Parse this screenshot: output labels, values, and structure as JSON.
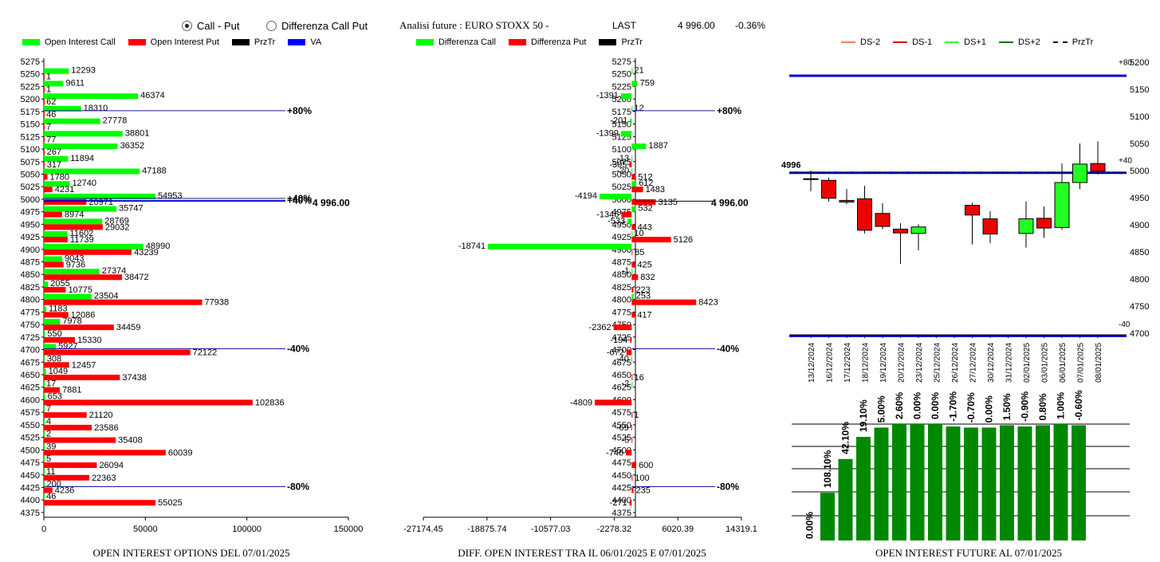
{
  "header": {
    "radio_call_put": "Call - Put",
    "radio_diff": "Differenza Call Put",
    "analysis_label": "Analisi future : EURO STOXX 50 -",
    "last_label": "LAST",
    "last_value": "4 996.00",
    "last_change": "-0.36%"
  },
  "legend1": {
    "items": [
      {
        "label": "Open Interest Call",
        "color": "#00ff00"
      },
      {
        "label": "Open Interest Put",
        "color": "#ff0000"
      },
      {
        "label": "PrzTr",
        "color": "#000000"
      },
      {
        "label": "VA",
        "color": "#0000ff"
      }
    ]
  },
  "legend2": {
    "items": [
      {
        "label": "Differenza Call",
        "color": "#00ff00"
      },
      {
        "label": "Differenza Put",
        "color": "#ff0000"
      },
      {
        "label": "PrzTr",
        "color": "#000000"
      }
    ]
  },
  "legend3": {
    "items": [
      {
        "label": "DS-2",
        "color": "#f08060",
        "style": "solid"
      },
      {
        "label": "DS-1",
        "color": "#dd0000",
        "style": "solid"
      },
      {
        "label": "DS+1",
        "color": "#33ff33",
        "style": "solid"
      },
      {
        "label": "DS+2",
        "color": "#007700",
        "style": "solid"
      },
      {
        "label": "PrzTr",
        "color": "#000000",
        "style": "dashed"
      }
    ]
  },
  "captions": {
    "c1": "OPEN INTEREST OPTIONS DEL 07/01/2025",
    "c2": "DIFF. OPEN INTEREST TRA IL 06/01/2025 E 07/01/2025",
    "c3": "OPEN INTEREST FUTURE AL 07/01/2025"
  },
  "chart_data": [
    {
      "type": "bar",
      "orientation": "horizontal",
      "strikes": [
        5275,
        5250,
        5225,
        5200,
        5175,
        5150,
        5125,
        5100,
        5075,
        5050,
        5025,
        5000,
        4975,
        4950,
        4925,
        4900,
        4875,
        4850,
        4825,
        4800,
        4775,
        4750,
        4725,
        4700,
        4675,
        4650,
        4625,
        4600,
        4575,
        4550,
        4525,
        4500,
        4475,
        4450,
        4425,
        4400,
        4375
      ],
      "series": [
        {
          "name": "Open Interest Call",
          "values": [
            null,
            12293,
            9611,
            46374,
            18310,
            27778,
            38801,
            36352,
            11894,
            47188,
            12740,
            54953,
            35747,
            28769,
            11602,
            48990,
            9043,
            27374,
            2055,
            23504,
            1183,
            7978,
            550,
            5927,
            308,
            1049,
            17,
            653,
            7,
            4,
            2,
            39,
            5,
            11,
            200,
            46,
            null
          ]
        },
        {
          "name": "Open Interest Put",
          "values": [
            null,
            1,
            1,
            62,
            46,
            7,
            77,
            267,
            317,
            1780,
            4231,
            20971,
            8974,
            29032,
            11739,
            43239,
            9736,
            38472,
            10775,
            77938,
            12086,
            34459,
            15330,
            72122,
            12457,
            37438,
            7881,
            102836,
            21120,
            23586,
            35408,
            60039,
            26094,
            22363,
            4236,
            55025,
            null
          ]
        }
      ],
      "x_ticks": [
        "0",
        "50000",
        "100000",
        "150000"
      ],
      "xlim": [
        0,
        150000
      ],
      "annotations": [
        {
          "strike": 5175,
          "label": "+80%"
        },
        {
          "strike": 5000,
          "label": "+40%"
        },
        {
          "strike": 4700,
          "label": "-40%"
        },
        {
          "strike": 4425,
          "label": "-80%"
        }
      ],
      "price_label": "4 996.00",
      "price": 4996
    },
    {
      "type": "bar",
      "orientation": "horizontal",
      "strikes": [
        5275,
        5250,
        5225,
        5200,
        5175,
        5150,
        5125,
        5100,
        5075,
        5050,
        5025,
        5000,
        4975,
        4950,
        4925,
        4900,
        4875,
        4850,
        4825,
        4800,
        4775,
        4750,
        4725,
        4700,
        4675,
        4650,
        4625,
        4600,
        4575,
        4550,
        4525,
        4500,
        4475,
        4450,
        4425,
        4400,
        4375
      ],
      "series": [
        {
          "name": "Differenza Call",
          "values": [
            null,
            21,
            759,
            -1391,
            12,
            -201,
            -1399,
            1887,
            -13,
            -20,
            612,
            -4194,
            532,
            -533,
            10,
            -18741,
            null,
            -1,
            null,
            253,
            null,
            null,
            null,
            null,
            -40,
            null,
            -2,
            null,
            null,
            null,
            null,
            null,
            null,
            null,
            null,
            null,
            null
          ]
        },
        {
          "name": "Differenza Put",
          "values": [
            null,
            null,
            null,
            null,
            null,
            null,
            null,
            null,
            -305,
            512,
            1483,
            3135,
            -1346,
            443,
            5126,
            85,
            425,
            832,
            223,
            8423,
            417,
            -2362,
            -194,
            -672,
            null,
            16,
            null,
            -4809,
            1,
            -69,
            -5,
            -746,
            600,
            100,
            235,
            -271,
            null
          ]
        }
      ],
      "x_ticks": [
        "-27174.45",
        "-18875.74",
        "-10577.03",
        "-2278.32",
        "6020.39",
        "14319.1"
      ],
      "xlim": [
        -27174.45,
        14319.1
      ],
      "annotations": [
        {
          "strike": 5175,
          "label": "+80%"
        },
        {
          "strike": 5000,
          "label": "-"
        },
        {
          "strike": 4700,
          "label": "-40%"
        },
        {
          "strike": 4425,
          "label": "-80%"
        }
      ],
      "price_label": "4 996.00",
      "price": 4996
    },
    {
      "type": "candlestick",
      "dates": [
        "13/12/2024",
        "16/12/2024",
        "17/12/2024",
        "18/12/2024",
        "19/12/2024",
        "20/12/2024",
        "23/12/2024",
        "25/12/2024",
        "26/12/2024",
        "27/12/2024",
        "30/12/2024",
        "31/12/2024",
        "02/01/2025",
        "03/01/2025",
        "06/01/2025",
        "07/01/2025",
        "08/01/2025"
      ],
      "candles": [
        {
          "o": 4985,
          "h": 5000,
          "l": 4962,
          "c": 4985
        },
        {
          "o": 4982,
          "h": 4987,
          "l": 4943,
          "c": 4949
        },
        {
          "o": 4945,
          "h": 4966,
          "l": 4938,
          "c": 4942
        },
        {
          "o": 4948,
          "h": 4972,
          "l": 4884,
          "c": 4890
        },
        {
          "o": 4921,
          "h": 4940,
          "l": 4892,
          "c": 4897
        },
        {
          "o": 4892,
          "h": 4903,
          "l": 4828,
          "c": 4885
        },
        {
          "o": 4884,
          "h": 4901,
          "l": 4853,
          "c": 4896
        },
        null,
        null,
        {
          "o": 4936,
          "h": 4941,
          "l": 4864,
          "c": 4918
        },
        {
          "o": 4911,
          "h": 4925,
          "l": 4866,
          "c": 4883
        },
        null,
        {
          "o": 4884,
          "h": 4943,
          "l": 4858,
          "c": 4911
        },
        {
          "o": 4912,
          "h": 4934,
          "l": 4876,
          "c": 4894
        },
        {
          "o": 4895,
          "h": 5013,
          "l": 4891,
          "c": 4978
        },
        {
          "o": 4978,
          "h": 5050,
          "l": 4966,
          "c": 5012
        },
        {
          "o": 5013,
          "h": 5054,
          "l": 4993,
          "c": 4999
        }
      ],
      "ylim": [
        4700,
        5200
      ],
      "y_ticks": [
        "5200",
        "5150",
        "5100",
        "5050",
        "5000",
        "4950",
        "4900",
        "4850",
        "4800",
        "4750",
        "4700"
      ],
      "ds_labels": {
        "plus80": "+80",
        "plus40": "+40",
        "minus40": "-40"
      },
      "price_label": "4996",
      "price": 4996,
      "upper_band": 5175,
      "lower_band": 4695
    },
    {
      "type": "bar",
      "series_labels": [
        "0.00%",
        "108.10%",
        "42.10%",
        "19.10%",
        "5.00%",
        "2.60%",
        "0.00%",
        "0.00%",
        "-1.70%",
        "-0.70%",
        "0.00%",
        "1.50%",
        "-0.90%",
        "0.80%",
        "1.00%",
        "-0.60%"
      ],
      "relative_values": [
        0,
        0.41,
        0.7,
        0.89,
        0.97,
        1.0,
        1.0,
        1.0,
        0.98,
        0.97,
        0.97,
        0.99,
        0.98,
        0.99,
        1.0,
        0.99
      ]
    }
  ]
}
